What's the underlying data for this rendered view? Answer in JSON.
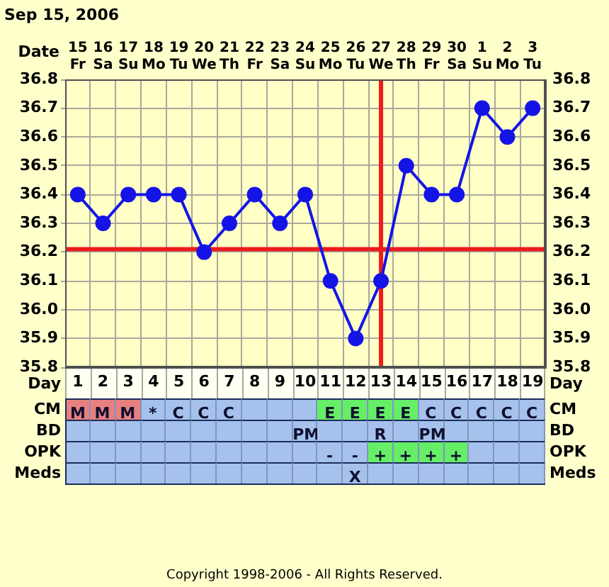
{
  "chart_data": [
    {
      "type": "line",
      "title": "Sep 15, 2006",
      "xlabel": "Day",
      "x2label": "Date",
      "x": [
        1,
        2,
        3,
        4,
        5,
        6,
        7,
        8,
        9,
        10,
        11,
        12,
        13,
        14,
        15,
        16,
        17,
        18,
        19
      ],
      "values": [
        36.4,
        36.3,
        36.4,
        36.4,
        36.4,
        36.2,
        36.3,
        36.4,
        36.3,
        36.4,
        36.1,
        35.9,
        36.1,
        36.5,
        36.4,
        36.4,
        36.7,
        36.6,
        36.7
      ],
      "color": "#1414e6",
      "xlim": [
        0.5,
        19.5
      ],
      "xticks": [
        1,
        2,
        3,
        4,
        5,
        6,
        7,
        8,
        9,
        10,
        11,
        12,
        13,
        14,
        15,
        16,
        17,
        18,
        19
      ],
      "x2lim": [
        "2006-09-14T12:00",
        "2006-10-03T12:00"
      ],
      "x2ticks": [
        {
          "value": "2006-09-15",
          "label": "15\nFr"
        },
        {
          "value": "2006-09-16",
          "label": "16\nSa"
        },
        {
          "value": "2006-09-17",
          "label": "17\nSu"
        },
        {
          "value": "2006-09-18",
          "label": "18\nMo"
        },
        {
          "value": "2006-09-19",
          "label": "19\nTu"
        },
        {
          "value": "2006-09-20",
          "label": "20\nWe"
        },
        {
          "value": "2006-09-21",
          "label": "21\nTh"
        },
        {
          "value": "2006-09-22",
          "label": "22\nFr"
        },
        {
          "value": "2006-09-23",
          "label": "23\nSa"
        },
        {
          "value": "2006-09-24",
          "label": "24\nSu"
        },
        {
          "value": "2006-09-25",
          "label": "25\nMo"
        },
        {
          "value": "2006-09-26",
          "label": "26\nTu"
        },
        {
          "value": "2006-09-27",
          "label": "27\nWe"
        },
        {
          "value": "2006-09-28",
          "label": "28\nTh"
        },
        {
          "value": "2006-09-29",
          "label": "29\nFr"
        },
        {
          "value": "2006-09-30",
          "label": "30\nSa"
        },
        {
          "value": "2006-10-01",
          "label": "1\nSu"
        },
        {
          "value": "2006-10-02",
          "label": "2\nMo"
        },
        {
          "value": "2006-10-03",
          "label": "3\nTu"
        }
      ],
      "ylim": [
        35.8,
        36.8
      ],
      "yticks": [
        35.8,
        35.9,
        {
          "value": 36,
          "label": "36.0"
        },
        36.1,
        36.2,
        36.3,
        36.4,
        36.5,
        36.6,
        36.7,
        36.8
      ],
      "y2lim": [
        35.8,
        36.8
      ],
      "y2ticks": [
        35.8,
        35.9,
        {
          "value": 36,
          "label": "36.0"
        },
        36.1,
        36.2,
        36.3,
        36.4,
        36.5,
        36.6,
        36.7,
        36.8
      ],
      "ref_lines": [
        {
          "axis": "y",
          "value": 36.21,
          "color": "#ee1c1c"
        },
        {
          "axis": "x",
          "value": 13,
          "color": "#ee1c1c"
        }
      ],
      "grid": true,
      "marker": "circle"
    },
    {
      "type": "other",
      "y_categories": [
        "CM",
        "BD",
        "OPK",
        "Meds"
      ],
      "y2_categories": [
        "CM",
        "BD",
        "OPK",
        "Meds"
      ],
      "cell_labels": [
        [
          "M",
          "M",
          "M",
          "*",
          "C",
          "C",
          "C",
          null,
          null,
          null,
          "E",
          "E",
          "E",
          "E",
          "C",
          "C",
          "C",
          "C",
          "C"
        ],
        [
          null,
          null,
          null,
          null,
          null,
          null,
          null,
          null,
          null,
          "PM",
          null,
          null,
          "R",
          null,
          "PM",
          null,
          null,
          null,
          null
        ],
        [
          null,
          null,
          null,
          null,
          null,
          null,
          null,
          null,
          null,
          null,
          "-",
          "-",
          "+",
          "+",
          "+",
          "+",
          null,
          null,
          null
        ],
        [
          null,
          null,
          null,
          null,
          null,
          null,
          null,
          null,
          null,
          null,
          null,
          "X",
          null,
          null,
          null,
          null,
          null,
          null,
          null
        ]
      ],
      "colors": [
        [
          "#e88080",
          "#e88080",
          "#e88080",
          "#a6c2ec",
          "#a6c2ec",
          "#a6c2ec",
          "#a6c2ec",
          "#a6c2ec",
          "#a6c2ec",
          "#a6c2ec",
          "#66ee66",
          "#66ee66",
          "#66ee66",
          "#66ee66",
          "#a6c2ec",
          "#a6c2ec",
          "#a6c2ec",
          "#a6c2ec",
          "#a6c2ec"
        ],
        [
          "#a6c2ec",
          "#a6c2ec",
          "#a6c2ec",
          "#a6c2ec",
          "#a6c2ec",
          "#a6c2ec",
          "#a6c2ec",
          "#a6c2ec",
          "#a6c2ec",
          "#a6c2ec",
          "#a6c2ec",
          "#a6c2ec",
          "#a6c2ec",
          "#a6c2ec",
          "#a6c2ec",
          "#a6c2ec",
          "#a6c2ec",
          "#a6c2ec",
          "#a6c2ec"
        ],
        [
          "#a6c2ec",
          "#a6c2ec",
          "#a6c2ec",
          "#a6c2ec",
          "#a6c2ec",
          "#a6c2ec",
          "#a6c2ec",
          "#a6c2ec",
          "#a6c2ec",
          "#a6c2ec",
          "#a6c2ec",
          "#a6c2ec",
          "#66ee66",
          "#66ee66",
          "#66ee66",
          "#66ee66",
          "#a6c2ec",
          "#a6c2ec",
          "#a6c2ec"
        ],
        [
          "#a6c2ec",
          "#a6c2ec",
          "#a6c2ec",
          "#a6c2ec",
          "#a6c2ec",
          "#a6c2ec",
          "#a6c2ec",
          "#a6c2ec",
          "#a6c2ec",
          "#a6c2ec",
          "#a6c2ec",
          "#a6c2ec",
          "#a6c2ec",
          "#a6c2ec",
          "#a6c2ec",
          "#a6c2ec",
          "#a6c2ec",
          "#a6c2ec",
          "#a6c2ec"
        ]
      ],
      "annotations": [
        "Copyright 1998-2006 - All Rights Reserved."
      ]
    }
  ]
}
